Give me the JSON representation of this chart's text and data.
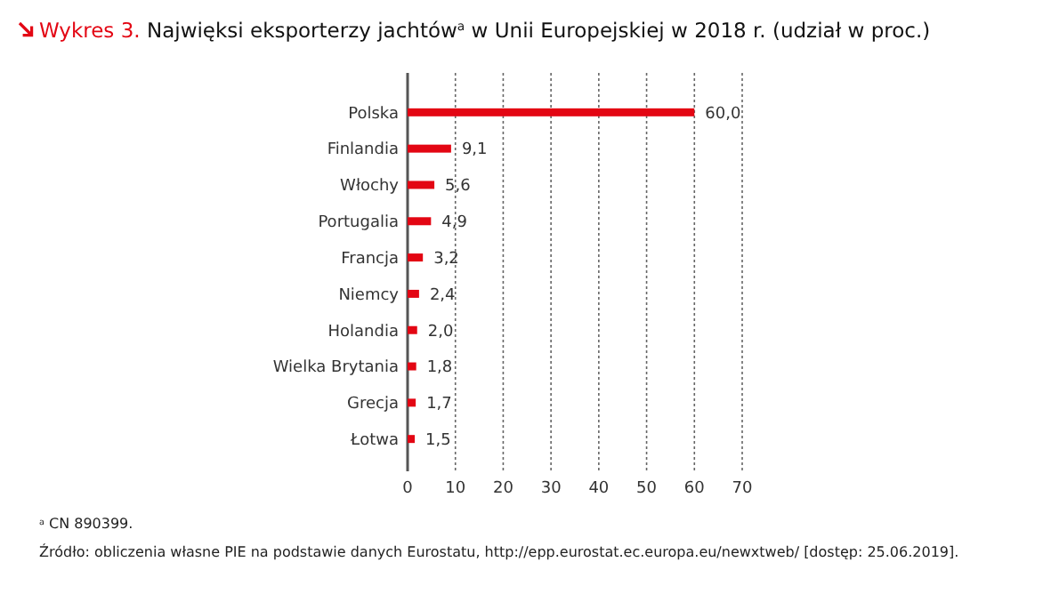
{
  "chart_data": {
    "type": "bar",
    "orientation": "horizontal",
    "title": "Wykres 3. Najwięksi eksporterzy jachtów$^{a}$ w Unii Europejskiej w 2018 r. (udział w proc.)",
    "categories": [
      "Polska",
      "Finlandia",
      "Włochy",
      "Portugalia",
      "Francja",
      "Niemcy",
      "Holandia",
      "Wielka Brytania",
      "Grecja",
      "Łotwa"
    ],
    "values": [
      60.0,
      9.1,
      5.6,
      4.9,
      3.2,
      2.4,
      2.0,
      1.8,
      1.7,
      1.5
    ],
    "value_labels": [
      "60,0",
      "9,1",
      "5,6",
      "4,9",
      "3,2",
      "2,4",
      "2,0",
      "1,8",
      "1,7",
      "1,5"
    ],
    "color": "#e30613",
    "xlim": [
      0,
      70
    ],
    "xticks": [
      0,
      10,
      20,
      30,
      40,
      50,
      60,
      70
    ],
    "grid": "x",
    "annotations": [
      "$^{a}$ CN 890399.",
      "Źródło: obliczenia własne PIE na podstawie danych Eurostatu, http://epp.eurostat.ec.europa.eu/newxtweb/ [dostęp: 25.06.2019]."
    ]
  }
}
